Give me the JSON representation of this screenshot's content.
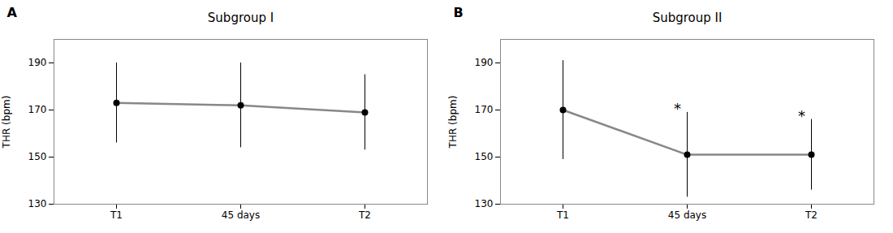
{
  "chart_data": [
    {
      "type": "line",
      "panel_label": "A",
      "title": "Subgroup I",
      "categories": [
        "T1",
        "45 days",
        "T2"
      ],
      "values": [
        173,
        172,
        169
      ],
      "errors": [
        17,
        18,
        16
      ],
      "ylabel": "THR (bpm)",
      "ylim": [
        130,
        200
      ],
      "yticks": [
        130,
        150,
        170,
        190
      ],
      "marker": "circle",
      "grid": false
    },
    {
      "type": "line",
      "panel_label": "B",
      "title": "Subgroup II",
      "categories": [
        "T1",
        "45 days",
        "T2"
      ],
      "values": [
        170,
        151,
        151
      ],
      "errors": [
        21,
        18,
        15
      ],
      "annotations": [
        {
          "category": "45 days",
          "text": "*"
        },
        {
          "category": "T2",
          "text": "*"
        }
      ],
      "ylabel": "THR (bpm)",
      "ylim": [
        130,
        200
      ],
      "yticks": [
        130,
        150,
        170,
        190
      ],
      "marker": "circle",
      "grid": false
    }
  ]
}
